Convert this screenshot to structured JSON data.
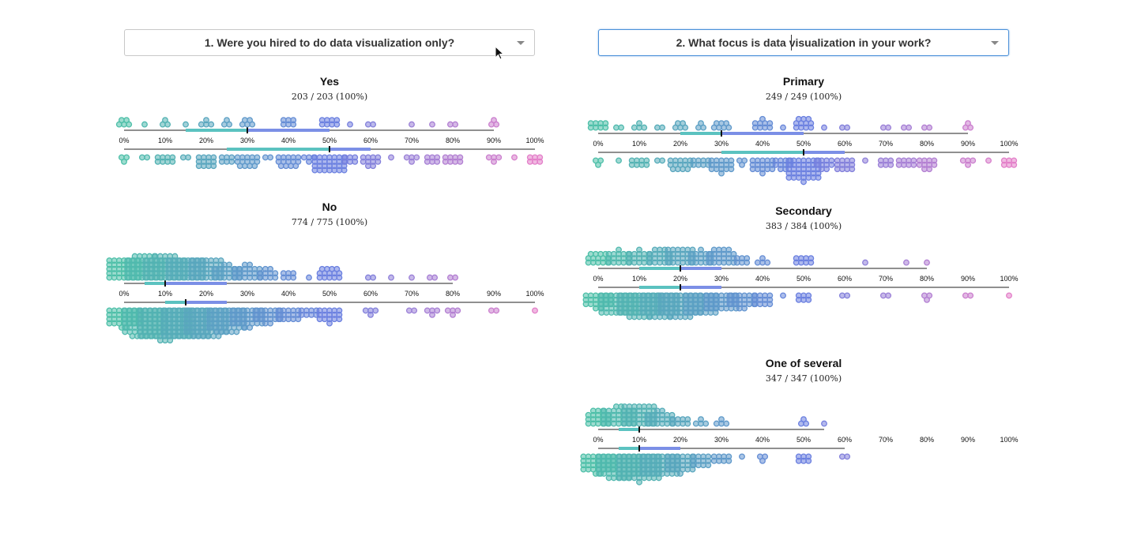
{
  "dropdown1": {
    "label": "1. Were you hired to do data visualization only?"
  },
  "dropdown2": {
    "label": "2. What focus is data visualization in your work?"
  },
  "colors": {
    "teal": "#4dbfa8",
    "blue": "#6b80e0",
    "pink": "#e37fc9",
    "axis": "#222222",
    "range_teal": "#5bc2c0",
    "range_blue": "#7b8fe6"
  },
  "chart_data": [
    {
      "type": "scatter",
      "variant": "beeswarm",
      "title": "Yes",
      "count_label": "203 / 203 (100%)",
      "ticks": [
        "0%",
        "10%",
        "20%",
        "30%",
        "40%",
        "50%",
        "60%",
        "70%",
        "80%",
        "90%",
        "100%"
      ],
      "xlim": [
        0,
        100
      ],
      "top": {
        "median": 30,
        "range": [
          15,
          50
        ],
        "bins": {
          "0": 5,
          "5": 1,
          "10": 3,
          "15": 1,
          "20": 4,
          "25": 3,
          "30": 5,
          "40": 6,
          "50": 8,
          "55": 1,
          "60": 2,
          "70": 1,
          "75": 1,
          "80": 2,
          "90": 3
        }
      },
      "bottom": {
        "median": 50,
        "range": [
          25,
          60
        ],
        "bins": {
          "0": 3,
          "5": 2,
          "10": 8,
          "15": 2,
          "20": 12,
          "25": 6,
          "30": 14,
          "35": 2,
          "40": 14,
          "45": 4,
          "50": 28,
          "55": 6,
          "60": 10,
          "65": 1,
          "70": 4,
          "75": 6,
          "80": 8,
          "90": 4,
          "95": 1,
          "100": 6
        }
      }
    },
    {
      "type": "scatter",
      "variant": "beeswarm",
      "title": "No",
      "count_label": "774 / 775 (100%)",
      "ticks": [
        "0%",
        "10%",
        "20%",
        "30%",
        "40%",
        "50%",
        "60%",
        "70%",
        "80%",
        "90%",
        "100%"
      ],
      "xlim": [
        0,
        100
      ],
      "top": {
        "median": 10,
        "range": [
          5,
          25
        ],
        "bins": {
          "0": 35,
          "5": 45,
          "10": 50,
          "15": 40,
          "20": 35,
          "25": 20,
          "30": 20,
          "35": 10,
          "40": 6,
          "45": 1,
          "50": 14,
          "60": 2,
          "65": 1,
          "70": 1,
          "75": 2,
          "80": 2
        }
      },
      "bottom": {
        "median": 15,
        "range": [
          10,
          25
        ],
        "bins": {
          "0": 30,
          "5": 60,
          "10": 80,
          "15": 70,
          "20": 60,
          "25": 45,
          "30": 30,
          "35": 20,
          "40": 15,
          "45": 8,
          "50": 16,
          "60": 4,
          "70": 2,
          "75": 4,
          "80": 4,
          "90": 2,
          "100": 1
        }
      }
    },
    {
      "type": "scatter",
      "variant": "beeswarm",
      "title": "Primary",
      "count_label": "249 / 249 (100%)",
      "ticks": [
        "0%",
        "10%",
        "20%",
        "30%",
        "40%",
        "50%",
        "60%",
        "70%",
        "80%",
        "90%",
        "100%"
      ],
      "xlim": [
        0,
        100
      ],
      "top": {
        "median": 30,
        "range": [
          20,
          50
        ],
        "bins": {
          "0": 8,
          "5": 2,
          "10": 4,
          "15": 2,
          "20": 5,
          "25": 3,
          "30": 7,
          "40": 9,
          "45": 1,
          "50": 11,
          "55": 1,
          "60": 2,
          "70": 2,
          "75": 2,
          "80": 2,
          "90": 3
        }
      },
      "bottom": {
        "median": 50,
        "range": [
          30,
          60
        ],
        "bins": {
          "0": 3,
          "5": 1,
          "10": 8,
          "15": 2,
          "20": 14,
          "25": 8,
          "30": 16,
          "35": 3,
          "40": 16,
          "45": 10,
          "50": 36,
          "55": 10,
          "60": 12,
          "65": 1,
          "70": 6,
          "75": 8,
          "80": 10,
          "90": 4,
          "95": 1,
          "100": 6
        }
      }
    },
    {
      "type": "scatter",
      "variant": "beeswarm",
      "title": "Secondary",
      "count_label": "383 / 384 (100%)",
      "ticks": [
        "0%",
        "10%",
        "20%",
        "30%",
        "40%",
        "50%",
        "60%",
        "70%",
        "80%",
        "90%",
        "100%"
      ],
      "xlim": [
        0,
        100
      ],
      "top": {
        "median": 20,
        "range": [
          10,
          30
        ],
        "bins": {
          "0": 14,
          "5": 16,
          "10": 16,
          "15": 18,
          "20": 24,
          "25": 16,
          "30": 22,
          "35": 6,
          "40": 4,
          "50": 8,
          "65": 1,
          "75": 1,
          "80": 1
        }
      },
      "bottom": {
        "median": 20,
        "range": [
          10,
          30
        ],
        "bins": {
          "0": 20,
          "5": 40,
          "10": 50,
          "15": 45,
          "20": 50,
          "25": 35,
          "30": 28,
          "35": 20,
          "40": 12,
          "45": 1,
          "50": 6,
          "60": 2,
          "70": 2,
          "80": 3,
          "90": 2,
          "100": 1
        }
      }
    },
    {
      "type": "scatter",
      "variant": "beeswarm",
      "title": "One of several",
      "count_label": "347 / 347 (100%)",
      "ticks": [
        "0%",
        "10%",
        "20%",
        "30%",
        "40%",
        "50%",
        "60%",
        "70%",
        "80%",
        "90%",
        "100%"
      ],
      "xlim": [
        0,
        100
      ],
      "top": {
        "median": 10,
        "range": [
          5,
          10
        ],
        "bins": {
          "0": 18,
          "5": 30,
          "10": 35,
          "15": 20,
          "20": 8,
          "25": 4,
          "30": 4,
          "50": 3,
          "55": 1
        }
      },
      "bottom": {
        "median": 10,
        "range": [
          5,
          20
        ],
        "bins": {
          "0": 30,
          "5": 50,
          "10": 55,
          "15": 40,
          "20": 25,
          "25": 12,
          "30": 8,
          "35": 1,
          "40": 3,
          "50": 6,
          "60": 2
        }
      }
    }
  ]
}
